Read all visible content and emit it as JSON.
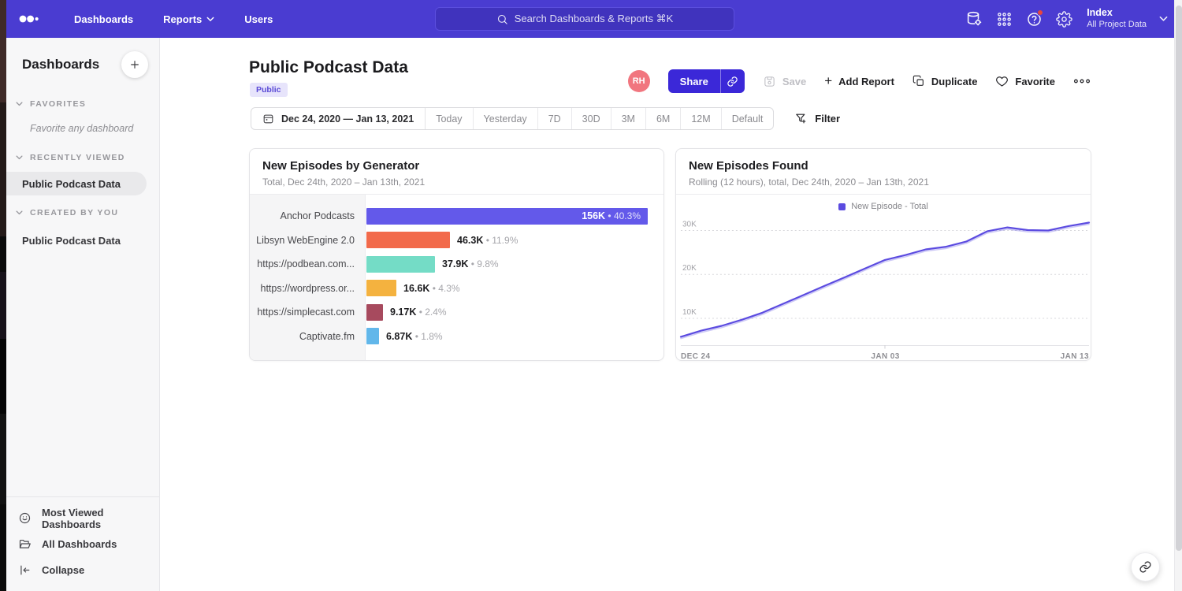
{
  "navbar": {
    "items": [
      "Dashboards",
      "Reports",
      "Users"
    ],
    "search_placeholder": "Search Dashboards & Reports ⌘K",
    "project": {
      "name": "Index",
      "subtitle": "All Project Data"
    }
  },
  "sidebar": {
    "title": "Dashboards",
    "sections": {
      "favorites": {
        "label": "FAVORITES",
        "hint": "Favorite any dashboard"
      },
      "recent": {
        "label": "RECENTLY VIEWED",
        "item": "Public Podcast Data"
      },
      "created": {
        "label": "CREATED BY YOU",
        "item": "Public Podcast Data"
      }
    },
    "footer": {
      "most_viewed": "Most Viewed Dashboards",
      "all_dashboards": "All Dashboards",
      "collapse": "Collapse"
    }
  },
  "header": {
    "title": "Public Podcast Data",
    "badge": "Public",
    "avatar_initials": "RH",
    "share_label": "Share",
    "save_label": "Save",
    "add_report_label": "Add Report",
    "duplicate_label": "Duplicate",
    "favorite_label": "Favorite"
  },
  "toolbar": {
    "date_range": "Dec 24, 2020 — Jan 13, 2021",
    "presets": [
      "Today",
      "Yesterday",
      "7D",
      "30D",
      "3M",
      "6M",
      "12M",
      "Default"
    ],
    "filter_label": "Filter"
  },
  "icons": [
    "mixpanel-logo",
    "chevron-down-icon",
    "search-icon",
    "data-stack-icon",
    "apps-grid-icon",
    "help-icon",
    "settings-gear-icon",
    "plus-icon",
    "calendar-icon",
    "funnel-plus-icon",
    "link-icon",
    "save-icon",
    "duplicate-icon",
    "heart-icon",
    "more-dots-icon",
    "smiley-icon",
    "folder-icon",
    "collapse-icon"
  ],
  "colors": {
    "navbar": "#4a3cd1",
    "accent": "#3b28d8",
    "avatar": "#f1767f",
    "badge_bg": "#e7e4fb",
    "badge_text": "#5a4ad6"
  },
  "chart_data": [
    {
      "type": "bar",
      "orientation": "horizontal",
      "title": "New Episodes by Generator",
      "subtitle": "Total, Dec 24th, 2020 – Jan 13th, 2021",
      "categories": [
        "Anchor Podcasts",
        "Libsyn WebEngine 2.0",
        "https://podbean.com...",
        "https://wordpress.or...",
        "https://simplecast.com",
        "Captivate.fm"
      ],
      "values": [
        156000,
        46300,
        37900,
        16600,
        9170,
        6870
      ],
      "value_labels": [
        "156K",
        "46.3K",
        "37.9K",
        "16.6K",
        "9.17K",
        "6.87K"
      ],
      "percent_labels": [
        "40.3%",
        "11.9%",
        "9.8%",
        "4.3%",
        "2.4%",
        "1.8%"
      ],
      "colors": [
        "#6359ea",
        "#f26a4b",
        "#74dcc6",
        "#f4b23f",
        "#a74a5e",
        "#62b7ea"
      ]
    },
    {
      "type": "line",
      "title": "New Episodes Found",
      "subtitle": "Rolling (12 hours), total, Dec 24th, 2020 – Jan 13th, 2021",
      "legend": [
        "New Episode - Total"
      ],
      "color": "#5b4be0",
      "x": [
        "Dec 24",
        "Dec 25",
        "Dec 26",
        "Dec 27",
        "Dec 28",
        "Dec 29",
        "Dec 30",
        "Dec 31",
        "Jan 01",
        "Jan 02",
        "Jan 03",
        "Jan 04",
        "Jan 05",
        "Jan 06",
        "Jan 07",
        "Jan 08",
        "Jan 09",
        "Jan 10",
        "Jan 11",
        "Jan 12",
        "Jan 13"
      ],
      "values": [
        5800,
        7200,
        8300,
        9700,
        11300,
        13300,
        15300,
        17300,
        19300,
        21300,
        23300,
        24400,
        25700,
        26300,
        27500,
        29800,
        30700,
        30100,
        30000,
        31000,
        31800
      ],
      "x_ticks": [
        "DEC 24",
        "JAN 03",
        "JAN 13"
      ],
      "y_ticks": [
        "10K",
        "20K",
        "30K"
      ],
      "y_gridlines": [
        10000,
        20000,
        30000
      ],
      "ylim": [
        3900,
        33500
      ],
      "grid": "dotted-horizontal",
      "legend_position": "top-center"
    }
  ]
}
